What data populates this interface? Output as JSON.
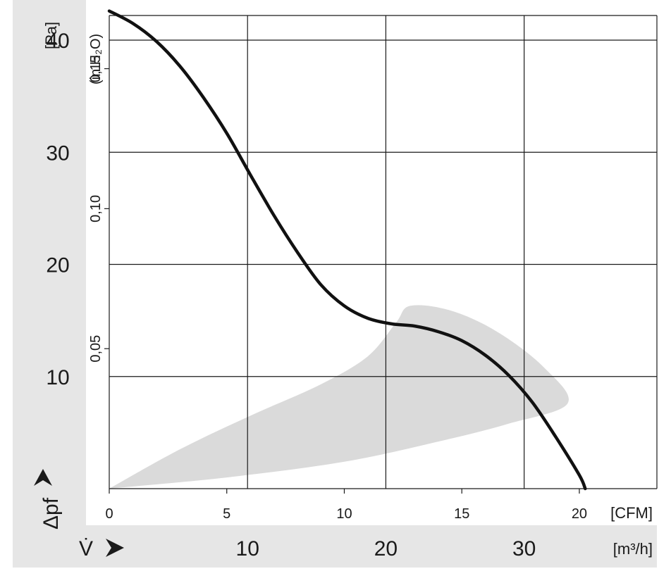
{
  "chart_data": {
    "type": "line",
    "title": "",
    "x_axes": {
      "cfm": {
        "label": "[CFM]",
        "range": [
          0,
          23.3
        ],
        "ticks": [
          "0",
          "5",
          "10",
          "15",
          "20"
        ]
      },
      "m3h": {
        "label": "[m³/h]",
        "symbol": "V̇",
        "range": [
          0,
          39.6
        ],
        "ticks": [
          "10",
          "20",
          "30"
        ]
      }
    },
    "y_axes": {
      "pa": {
        "label": "[Pa]",
        "symbol": "Δpf",
        "range": [
          0,
          42.2
        ],
        "ticks": [
          "10",
          "20",
          "30",
          "40"
        ]
      },
      "inh2o": {
        "label": "(in H₂O)",
        "range": [
          0,
          0.169
        ],
        "ticks": [
          "0,05",
          "0,10",
          "0,15"
        ]
      }
    },
    "grid": true,
    "series": [
      {
        "kind": "curve",
        "color": "#111111",
        "x_unit": "CFM",
        "y_unit": "Pa",
        "points": [
          [
            0,
            42.6
          ],
          [
            1,
            41.5
          ],
          [
            2,
            39.9
          ],
          [
            3,
            37.7
          ],
          [
            4,
            34.9
          ],
          [
            5,
            31.7
          ],
          [
            6,
            28.0
          ],
          [
            7,
            24.4
          ],
          [
            8,
            21.1
          ],
          [
            9,
            18.2
          ],
          [
            10,
            16.3
          ],
          [
            11,
            15.2
          ],
          [
            12,
            14.7
          ],
          [
            13,
            14.5
          ],
          [
            14,
            14.0
          ],
          [
            15,
            13.2
          ],
          [
            16,
            11.9
          ],
          [
            17,
            10.1
          ],
          [
            18,
            7.7
          ],
          [
            19,
            4.6
          ],
          [
            20,
            1.2
          ],
          [
            20.25,
            0
          ]
        ]
      },
      {
        "kind": "operating-region",
        "color": "#dadada",
        "x_unit": "CFM",
        "y_unit": "Pa",
        "points": [
          [
            0,
            0
          ],
          [
            3,
            3.5
          ],
          [
            6,
            6.5
          ],
          [
            9,
            9.3
          ],
          [
            11,
            11.8
          ],
          [
            12.2,
            14.8
          ],
          [
            12.8,
            16.3
          ],
          [
            14.5,
            15.9
          ],
          [
            16.5,
            14.0
          ],
          [
            18.5,
            10.8
          ],
          [
            19.5,
            7.6
          ],
          [
            17,
            5.8
          ],
          [
            14,
            4.2
          ],
          [
            10,
            2.4
          ],
          [
            5,
            1.0
          ],
          [
            0,
            0
          ]
        ]
      }
    ],
    "colors": {
      "band": "#e6e6e6",
      "grid": "#1a1a1a",
      "region": "#dadada",
      "curve": "#111111"
    }
  }
}
